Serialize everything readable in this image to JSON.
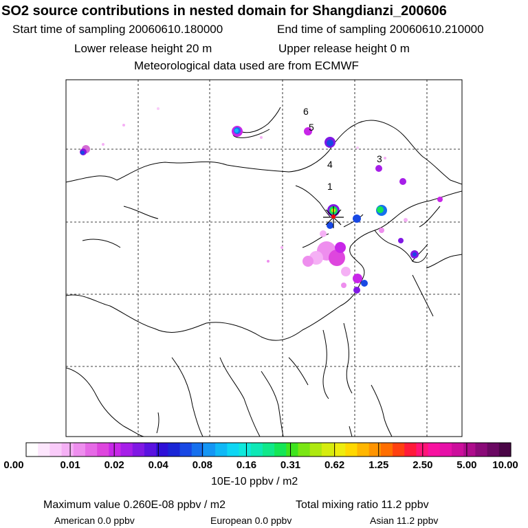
{
  "header": {
    "title": "SO2 source contributions in nested domain for Shangdianzi_200606",
    "start_label": "Start time of sampling 20060610.180000",
    "end_label": "End time of sampling 20060610.210000",
    "lower_release": "Lower release height   20 m",
    "upper_release": "Upper release height    0 m",
    "met_source": "Meteorological data used are from ECMWF"
  },
  "map": {
    "site_labels": [
      "1",
      "3",
      "4",
      "5",
      "6"
    ]
  },
  "colorbar": {
    "ticks": [
      "0.00",
      "0.01",
      "0.02",
      "0.04",
      "0.08",
      "0.16",
      "0.31",
      "0.62",
      "1.25",
      "2.50",
      "5.00",
      "10.00"
    ],
    "colors": [
      "#ffffff",
      "#fde6fd",
      "#f9cbf9",
      "#f5b0f5",
      "#ee8eee",
      "#e66ae6",
      "#de46de",
      "#c826e8",
      "#a61ee8",
      "#8018e4",
      "#5a12e0",
      "#2e10d8",
      "#1a26d6",
      "#1848e4",
      "#1670ee",
      "#1496f4",
      "#10b8f6",
      "#0ed6f4",
      "#0ee8dc",
      "#0ee8b6",
      "#10e88a",
      "#14e656",
      "#3ee41e",
      "#7ae614",
      "#aee810",
      "#d6ec0e",
      "#eeec0e",
      "#ffd800",
      "#ffb600",
      "#ff9400",
      "#ff6e00",
      "#ff4010",
      "#ff1a3a",
      "#ff1478",
      "#f812a0",
      "#e610a8",
      "#cc0e9c",
      "#ae0c8c",
      "#8a0a78",
      "#6a0862",
      "#4a0646"
    ],
    "unit": "10E-10 ppbv / m2"
  },
  "summary": {
    "max_value": "Maximum value  0.260E-08 ppbv / m2",
    "total_mixing": "Total mixing ratio      11.2 ppbv",
    "american": "American       0.0 ppbv",
    "european": "European       0.0 ppbv",
    "asian": "Asian      11.2 ppbv"
  }
}
